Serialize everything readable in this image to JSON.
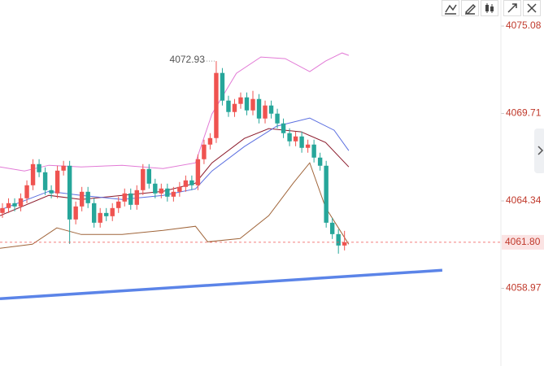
{
  "chart_data": {
    "type": "candlestick",
    "open": [
      4063.6,
      4063.9,
      4064.2,
      4064.0,
      4064.5,
      4065.3,
      4066.6,
      4066.1,
      4065.0,
      4064.8,
      4066.2,
      4066.5,
      4063.2,
      4064.0,
      4064.9,
      4064.2,
      4063.0,
      4063.6,
      4063.4,
      4063.9,
      4064.3,
      4064.8,
      4064.1,
      4065.0,
      4066.3,
      4065.4,
      4064.8,
      4065.1,
      4064.6,
      4064.9,
      4065.2,
      4065.6,
      4065.3,
      4066.9,
      4067.8,
      4068.2,
      4072.2,
      4070.5,
      4069.8,
      4070.3,
      4070.7,
      4069.9,
      4070.6,
      4069.4,
      4070.2,
      4069.7,
      4069.1,
      4068.5,
      4068.0,
      4068.3,
      4067.6,
      4067.8,
      4067.0,
      4066.5,
      4063.0,
      4062.3,
      4061.6
    ],
    "high": [
      4064.2,
      4064.5,
      4064.5,
      4064.8,
      4065.6,
      4066.9,
      4066.9,
      4066.4,
      4065.3,
      4066.5,
      4066.8,
      4066.8,
      4064.3,
      4065.2,
      4065.2,
      4064.5,
      4063.9,
      4063.9,
      4064.2,
      4064.6,
      4065.1,
      4065.1,
      4065.3,
      4066.6,
      4066.6,
      4065.7,
      4065.4,
      4065.4,
      4065.2,
      4065.5,
      4065.9,
      4065.9,
      4067.2,
      4068.1,
      4068.5,
      4072.93,
      4072.5,
      4070.8,
      4070.6,
      4071.0,
      4071.0,
      4071.1,
      4070.9,
      4070.5,
      4070.5,
      4070.0,
      4069.4,
      4068.8,
      4068.6,
      4068.6,
      4068.1,
      4068.1,
      4067.3,
      4066.8,
      4063.3,
      4062.6,
      4062.5
    ],
    "low": [
      4063.3,
      4063.6,
      4063.7,
      4063.7,
      4064.2,
      4065.0,
      4065.8,
      4064.7,
      4064.5,
      4064.5,
      4065.9,
      4061.7,
      4062.9,
      4063.7,
      4063.9,
      4062.7,
      4062.7,
      4063.1,
      4063.1,
      4063.6,
      4064.0,
      4063.8,
      4063.8,
      4064.7,
      4065.1,
      4064.5,
      4064.5,
      4064.3,
      4064.3,
      4064.6,
      4064.9,
      4065.0,
      4065.0,
      4066.6,
      4067.5,
      4067.9,
      4070.2,
      4069.5,
      4069.5,
      4070.0,
      4069.6,
      4069.6,
      4069.1,
      4069.1,
      4069.4,
      4068.8,
      4068.2,
      4067.7,
      4067.7,
      4067.3,
      4067.3,
      4066.7,
      4066.2,
      4062.7,
      4062.0,
      4061.1,
      4061.3
    ],
    "close": [
      4063.9,
      4064.2,
      4064.0,
      4064.5,
      4065.3,
      4066.6,
      4066.1,
      4065.0,
      4064.8,
      4066.2,
      4066.5,
      4063.2,
      4064.0,
      4064.9,
      4064.2,
      4063.0,
      4063.6,
      4063.4,
      4063.9,
      4064.3,
      4064.8,
      4064.1,
      4065.0,
      4066.3,
      4065.4,
      4064.8,
      4065.1,
      4064.6,
      4064.9,
      4065.2,
      4065.6,
      4065.3,
      4066.9,
      4067.8,
      4068.2,
      4072.2,
      4070.5,
      4069.8,
      4070.3,
      4070.7,
      4069.9,
      4070.6,
      4069.4,
      4070.2,
      4069.7,
      4069.1,
      4068.5,
      4068.0,
      4068.3,
      4067.6,
      4067.8,
      4067.0,
      4066.5,
      4063.0,
      4062.3,
      4061.6,
      4061.8
    ],
    "up_color": "#ef5350",
    "down_color": "#26a69a",
    "lines": [
      {
        "color": "#e27ad6",
        "x": [
          -0.4,
          3.6,
          7.6,
          12.9,
          19.6,
          26.3,
          31.6,
          34.3,
          38.3,
          42.3,
          46.3,
          50.3,
          52.9,
          55.6,
          56.7
        ],
        "values": [
          4066.43,
          4066.18,
          4066.53,
          4066.43,
          4066.53,
          4066.33,
          4066.68,
          4069.68,
          4072.18,
          4073.18,
          4073.08,
          4072.28,
          4072.93,
          4073.43,
          4073.28
        ]
      },
      {
        "color": "#8b1a2b",
        "x": [
          -0.4,
          7.6,
          12.9,
          19.6,
          26.3,
          31.6,
          34.3,
          39.6,
          43.6,
          48.9,
          52.9,
          56.7
        ],
        "values": [
          4063.43,
          4064.68,
          4064.43,
          4064.68,
          4064.93,
          4065.43,
          4066.68,
          4068.18,
          4068.78,
          4068.58,
          4067.93,
          4066.43
        ]
      },
      {
        "color": "#5b6fe0",
        "x": [
          -0.4,
          7.6,
          12.9,
          19.6,
          26.3,
          31.6,
          34.3,
          39.6,
          44.9,
          50.3,
          54.3,
          56.7
        ],
        "values": [
          4063.78,
          4064.93,
          4064.68,
          4064.43,
          4064.68,
          4065.08,
          4066.18,
          4067.68,
          4068.93,
          4069.43,
          4068.68,
          4067.43
        ]
      },
      {
        "color": "#a0653a",
        "x": [
          -0.4,
          4.9,
          8.9,
          12.9,
          19.6,
          26.3,
          31.6,
          33.6,
          38.9,
          43.6,
          47.6,
          50.3,
          52.9,
          56.7
        ],
        "values": [
          4061.43,
          4061.68,
          4062.68,
          4062.28,
          4062.28,
          4062.53,
          4062.78,
          4061.83,
          4062.03,
          4063.43,
          4065.43,
          4066.68,
          4063.93,
          4061.68
        ]
      }
    ],
    "trend_line": {
      "color": "#5b84e8",
      "x": [
        -0.4,
        72
      ],
      "values": [
        4058.33,
        4060.08
      ]
    },
    "high_annotation": 4072.93,
    "last_price": {
      "value": 4061.8,
      "label": "4061.80"
    },
    "xlim": [
      -0.4,
      81.6
    ],
    "ylim": [
      4054.2,
      4076.68
    ],
    "yticks": [
      4075.08,
      4069.71,
      4064.34,
      4058.97
    ]
  }
}
